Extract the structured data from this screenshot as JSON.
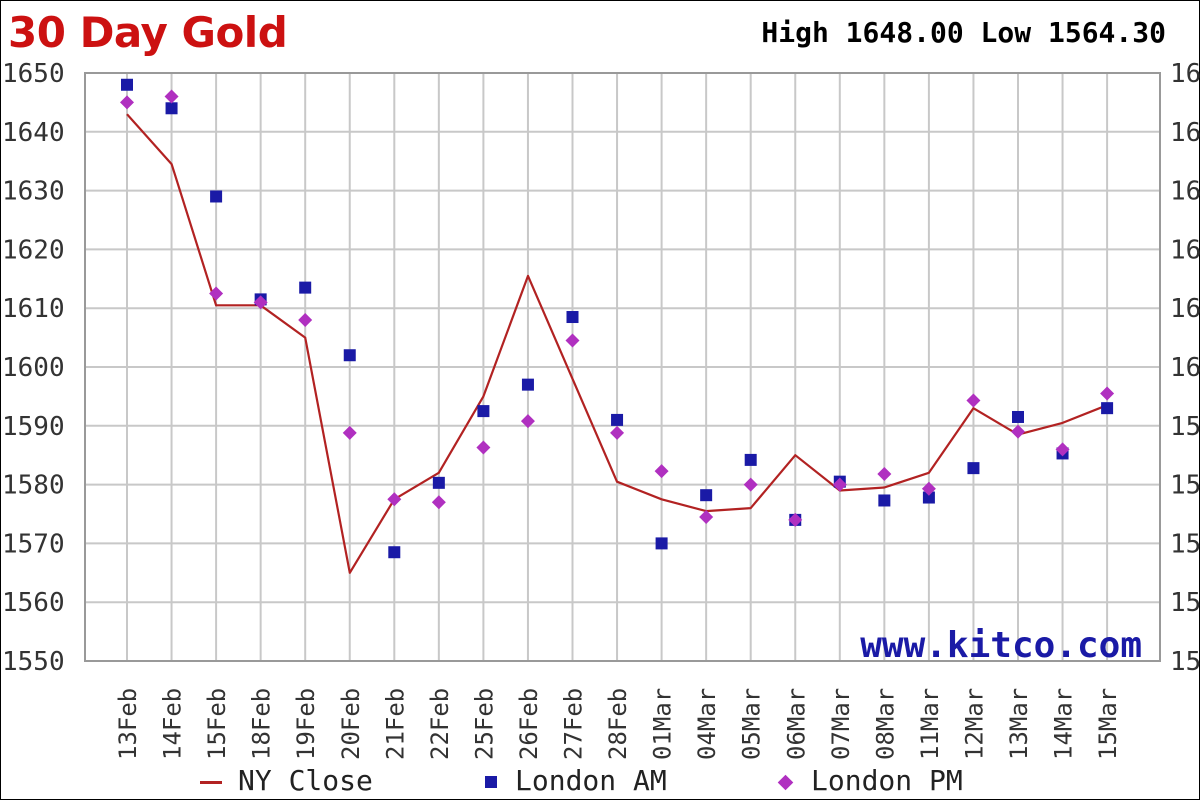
{
  "header": {
    "title": "30 Day Gold",
    "high_label": "High",
    "high_value": "1648.00",
    "low_label": "Low",
    "low_value": "1564.30"
  },
  "watermark": "www.kitco.com",
  "colors": {
    "title": "#cc1111",
    "ny_close": "#b22222",
    "london_am": "#1a1aa6",
    "london_pm": "#b030c0",
    "grid": "#c8c8c8"
  },
  "chart_data": {
    "type": "line",
    "title": "30 Day Gold",
    "xlabel": "",
    "ylabel": "",
    "ylim": [
      1550,
      1650
    ],
    "yticks": [
      1550,
      1560,
      1570,
      1580,
      1590,
      1600,
      1610,
      1620,
      1630,
      1640,
      1650
    ],
    "right_axis_labels": [
      "15",
      "15",
      "15",
      "15",
      "15",
      "16",
      "16",
      "16",
      "16",
      "16",
      "16"
    ],
    "grid": true,
    "legend_position": "bottom",
    "categories": [
      "13Feb",
      "14Feb",
      "15Feb",
      "18Feb",
      "19Feb",
      "20Feb",
      "21Feb",
      "22Feb",
      "25Feb",
      "26Feb",
      "27Feb",
      "28Feb",
      "01Mar",
      "04Mar",
      "05Mar",
      "06Mar",
      "07Mar",
      "08Mar",
      "11Mar",
      "12Mar",
      "13Mar",
      "14Mar",
      "15Mar"
    ],
    "series": [
      {
        "name": "NY Close",
        "style": "line",
        "values": [
          1643,
          1634.5,
          1610.5,
          1610.5,
          1605,
          1565,
          1577.5,
          1582,
          1595,
          1615.5,
          1598,
          1580.5,
          1577.5,
          1575.5,
          1576,
          1585,
          1579,
          1579.5,
          1582,
          1593,
          1588.5,
          1590.5,
          1593.5
        ]
      },
      {
        "name": "London AM",
        "style": "square",
        "values": [
          1648,
          1644,
          1629,
          1611.5,
          1613.5,
          1602,
          1568.5,
          1580.3,
          1592.5,
          1597,
          1608.5,
          1591,
          1570,
          1578.2,
          1584.2,
          1574,
          1580.5,
          1577.3,
          1577.8,
          1582.8,
          1591.5,
          1585.3,
          1593
        ]
      },
      {
        "name": "London PM",
        "style": "diamond",
        "values": [
          1645,
          1646,
          1612.5,
          1611,
          1608,
          1588.8,
          1577.5,
          1577,
          1586.3,
          1590.8,
          1604.5,
          1588.8,
          1582.3,
          1574.5,
          1580,
          1574,
          1580,
          1581.8,
          1579.3,
          1594.3,
          1589,
          1586,
          1595.5
        ]
      }
    ]
  }
}
